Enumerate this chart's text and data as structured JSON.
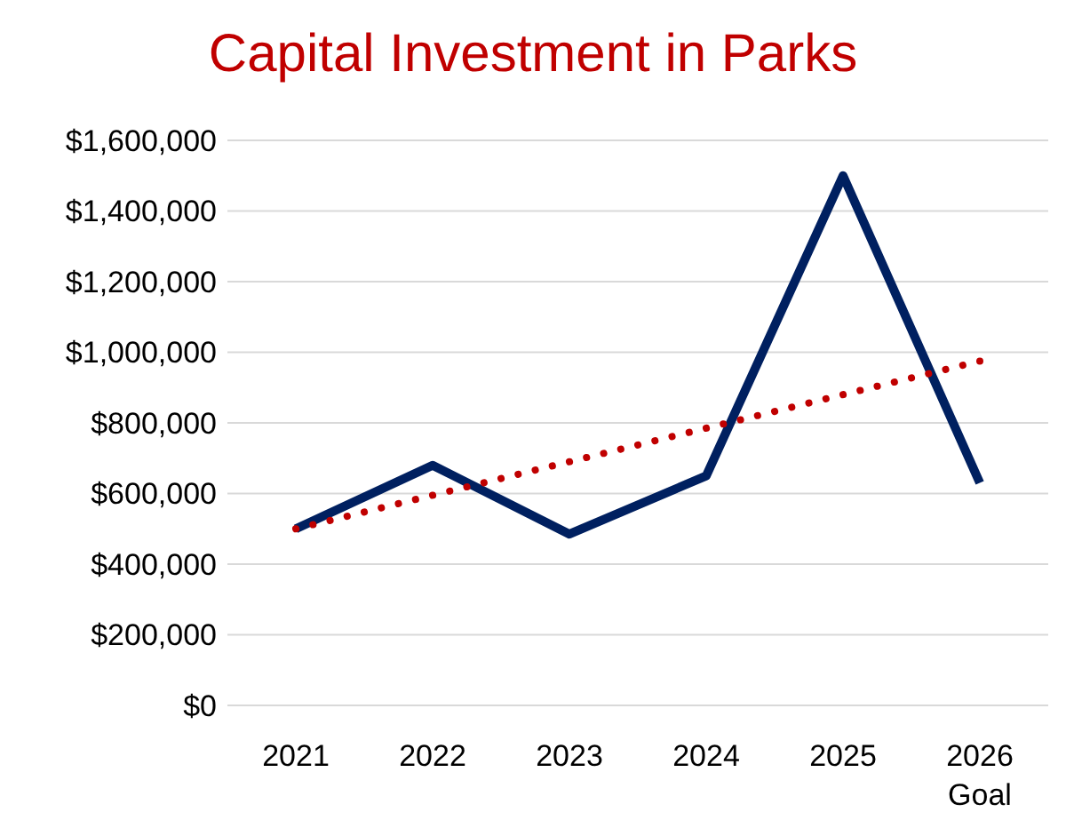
{
  "chart_data": {
    "type": "line",
    "title": "Capital Investment in Parks",
    "categories": [
      "2021",
      "2022",
      "2023",
      "2024",
      "2025",
      "2026\nGoal"
    ],
    "series": [
      {
        "color": "#002060",
        "values": [
          500000,
          680000,
          485000,
          650000,
          1500000,
          630000
        ],
        "line_style": "solid"
      },
      {
        "color": "#c00000",
        "values": [
          500000,
          595000,
          690000,
          785000,
          880000,
          975000
        ],
        "line_style": "dotted"
      }
    ],
    "ylim": [
      0,
      1600000
    ],
    "yticks": [
      {
        "value": 0,
        "label": "$0"
      },
      {
        "value": 200000,
        "label": "$200,000"
      },
      {
        "value": 400000,
        "label": "$400,000"
      },
      {
        "value": 600000,
        "label": "$600,000"
      },
      {
        "value": 800000,
        "label": "$800,000"
      },
      {
        "value": 1000000,
        "label": "$1,000,000"
      },
      {
        "value": 1200000,
        "label": "$1,200,000"
      },
      {
        "value": 1400000,
        "label": "$1,400,000"
      },
      {
        "value": 1600000,
        "label": "$1,600,000"
      }
    ],
    "grid": "y",
    "marker": "none"
  }
}
